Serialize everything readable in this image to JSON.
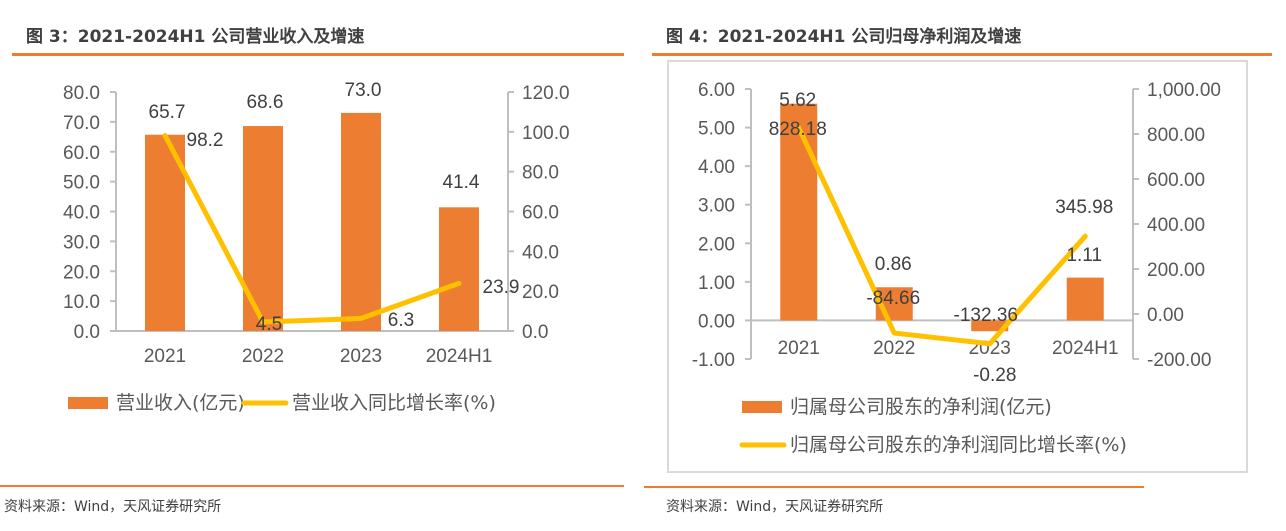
{
  "colors": {
    "bar": "#ED7D31",
    "line": "#FFC000",
    "rule": "#ED7D31",
    "axis": "#BFBFBF",
    "frame": "#D9D9D9"
  },
  "left": {
    "title": "图 3：2021-2024H1 公司营业收入及增速",
    "source": "资料来源：Wind，天风证券研究所",
    "chart_data": {
      "type": "bar",
      "title": "图 3：2021-2024H1 公司营业收入及增速",
      "categories": [
        "2021",
        "2022",
        "2023",
        "2024H1"
      ],
      "series": [
        {
          "name": "营业收入(亿元)",
          "kind": "bar",
          "axis": "left",
          "values": [
            65.7,
            68.6,
            73.0,
            41.4
          ],
          "labels": [
            "65.7",
            "68.6",
            "73.0",
            "41.4"
          ]
        },
        {
          "name": "营业收入同比增长率(%)",
          "kind": "line",
          "axis": "right",
          "values": [
            98.2,
            4.5,
            6.3,
            23.9
          ],
          "labels": [
            "98.2",
            "4.5",
            "6.3",
            "23.9"
          ]
        }
      ],
      "y_left": {
        "min": 0,
        "max": 80,
        "step": 10,
        "ticks": [
          "0.0",
          "10.0",
          "20.0",
          "30.0",
          "40.0",
          "50.0",
          "60.0",
          "70.0",
          "80.0"
        ]
      },
      "y_right": {
        "min": 0,
        "max": 120,
        "step": 20,
        "ticks": [
          "0.0",
          "20.0",
          "40.0",
          "60.0",
          "80.0",
          "100.0",
          "120.0"
        ]
      },
      "legend": {
        "placement": "bottom",
        "items": [
          "营业收入(亿元)",
          "营业收入同比增长率(%)"
        ]
      },
      "grid": false
    }
  },
  "right": {
    "title": "图 4：2021-2024H1 公司归母净利润及增速",
    "source": "资料来源：Wind，天风证券研究所",
    "chart_data": {
      "type": "bar",
      "title": "图 4：2021-2024H1 公司归母净利润及增速",
      "categories": [
        "2021",
        "2022",
        "2023",
        "2024H1"
      ],
      "series": [
        {
          "name": "归属母公司股东的净利润(亿元)",
          "kind": "bar",
          "axis": "left",
          "values": [
            5.62,
            0.86,
            -0.28,
            1.11
          ],
          "labels": [
            "5.62",
            "0.86",
            "-0.28",
            "1.11"
          ]
        },
        {
          "name": "归属母公司股东的净利润同比增长率(%)",
          "kind": "line",
          "axis": "right",
          "values": [
            828.18,
            -84.66,
            -132.36,
            345.98
          ],
          "labels": [
            "828.18",
            "-84.66",
            "-132.36",
            "345.98"
          ]
        }
      ],
      "y_left": {
        "min": -1,
        "max": 6,
        "step": 1,
        "ticks": [
          "-1.00",
          "0.00",
          "1.00",
          "2.00",
          "3.00",
          "4.00",
          "5.00",
          "6.00"
        ]
      },
      "y_right": {
        "min": -200,
        "max": 1000,
        "step": 200,
        "ticks": [
          "-200.00",
          "0.00",
          "200.00",
          "400.00",
          "600.00",
          "800.00",
          "1,000.00"
        ]
      },
      "legend": {
        "placement": "bottom",
        "items": [
          "归属母公司股东的净利润(亿元)",
          "归属母公司股东的净利润同比增长率(%)"
        ]
      },
      "grid": false
    }
  }
}
